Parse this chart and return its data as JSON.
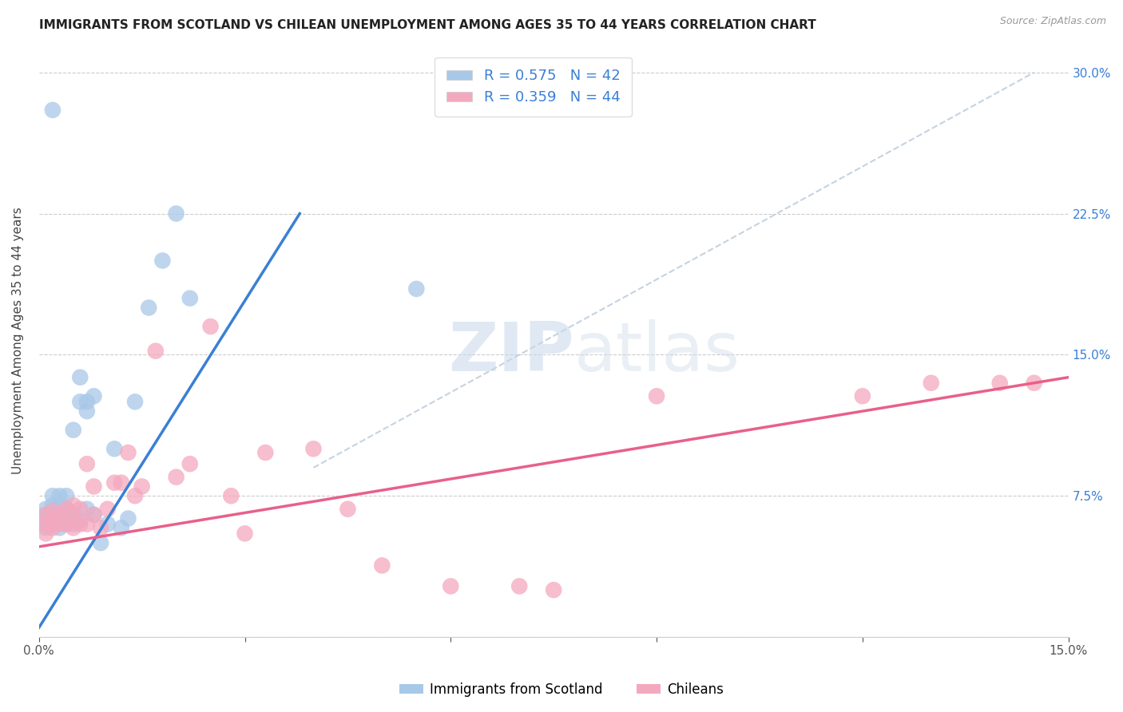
{
  "title": "IMMIGRANTS FROM SCOTLAND VS CHILEAN UNEMPLOYMENT AMONG AGES 35 TO 44 YEARS CORRELATION CHART",
  "source": "Source: ZipAtlas.com",
  "ylabel": "Unemployment Among Ages 35 to 44 years",
  "xlim": [
    0.0,
    0.15
  ],
  "ylim": [
    0.0,
    0.315
  ],
  "legend_blue_label": "Immigrants from Scotland",
  "legend_pink_label": "Chileans",
  "R_blue": 0.575,
  "N_blue": 42,
  "R_pink": 0.359,
  "N_pink": 44,
  "blue_color": "#a8c8e8",
  "pink_color": "#f4a8be",
  "blue_line_color": "#3a7fd5",
  "pink_line_color": "#e8608a",
  "diagonal_color": "#b8c8d8",
  "blue_line_x": [
    0.0,
    0.038
  ],
  "blue_line_y": [
    0.005,
    0.225
  ],
  "pink_line_x": [
    0.0,
    0.15
  ],
  "pink_line_y": [
    0.048,
    0.138
  ],
  "diag_line_x": [
    0.04,
    0.145
  ],
  "diag_line_y": [
    0.09,
    0.3
  ],
  "scotland_x": [
    0.001,
    0.001,
    0.001,
    0.001,
    0.002,
    0.002,
    0.002,
    0.002,
    0.002,
    0.003,
    0.003,
    0.003,
    0.003,
    0.003,
    0.003,
    0.004,
    0.004,
    0.004,
    0.004,
    0.005,
    0.005,
    0.005,
    0.006,
    0.006,
    0.006,
    0.007,
    0.007,
    0.007,
    0.008,
    0.008,
    0.009,
    0.01,
    0.011,
    0.012,
    0.013,
    0.014,
    0.016,
    0.018,
    0.02,
    0.022,
    0.055,
    0.002
  ],
  "scotland_y": [
    0.058,
    0.062,
    0.065,
    0.068,
    0.06,
    0.063,
    0.065,
    0.07,
    0.075,
    0.058,
    0.061,
    0.063,
    0.066,
    0.07,
    0.075,
    0.06,
    0.062,
    0.068,
    0.075,
    0.06,
    0.065,
    0.11,
    0.062,
    0.125,
    0.138,
    0.068,
    0.12,
    0.125,
    0.065,
    0.128,
    0.05,
    0.06,
    0.1,
    0.058,
    0.063,
    0.125,
    0.175,
    0.2,
    0.225,
    0.18,
    0.185,
    0.28
  ],
  "chilean_x": [
    0.001,
    0.001,
    0.001,
    0.002,
    0.002,
    0.002,
    0.003,
    0.003,
    0.004,
    0.004,
    0.005,
    0.005,
    0.005,
    0.006,
    0.006,
    0.007,
    0.007,
    0.008,
    0.008,
    0.009,
    0.01,
    0.011,
    0.012,
    0.013,
    0.014,
    0.015,
    0.017,
    0.02,
    0.022,
    0.025,
    0.028,
    0.03,
    0.033,
    0.04,
    0.045,
    0.05,
    0.06,
    0.07,
    0.075,
    0.09,
    0.12,
    0.13,
    0.14,
    0.145
  ],
  "chilean_y": [
    0.055,
    0.06,
    0.065,
    0.058,
    0.062,
    0.067,
    0.06,
    0.065,
    0.06,
    0.068,
    0.058,
    0.063,
    0.07,
    0.06,
    0.068,
    0.06,
    0.092,
    0.065,
    0.08,
    0.058,
    0.068,
    0.082,
    0.082,
    0.098,
    0.075,
    0.08,
    0.152,
    0.085,
    0.092,
    0.165,
    0.075,
    0.055,
    0.098,
    0.1,
    0.068,
    0.038,
    0.027,
    0.027,
    0.025,
    0.128,
    0.128,
    0.135,
    0.135,
    0.135
  ]
}
